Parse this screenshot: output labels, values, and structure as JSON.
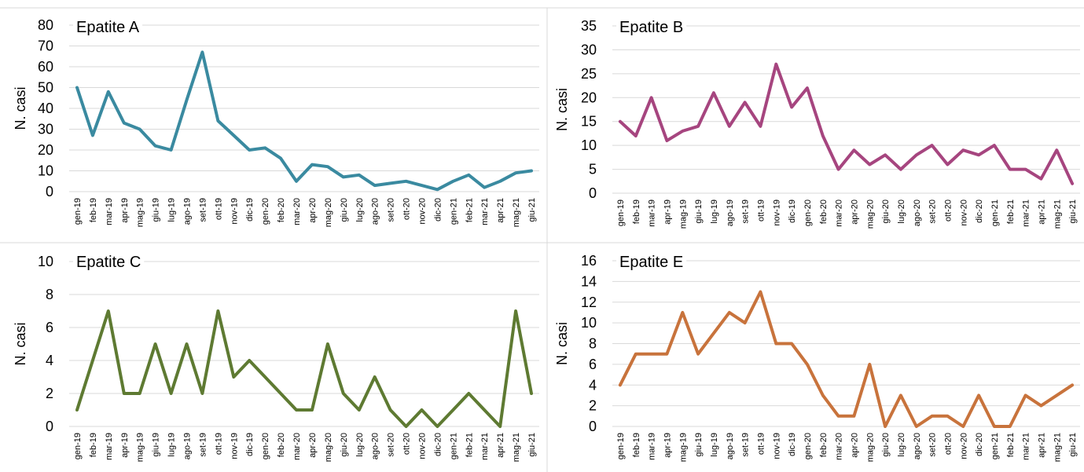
{
  "months": [
    "gen-19",
    "feb-19",
    "mar-19",
    "apr-19",
    "mag-19",
    "giu-19",
    "lug-19",
    "ago-19",
    "set-19",
    "ott-19",
    "nov-19",
    "dic-19",
    "gen-20",
    "feb-20",
    "mar-20",
    "apr-20",
    "mag-20",
    "giu-20",
    "lug-20",
    "ago-20",
    "set-20",
    "ott-20",
    "nov-20",
    "dic-20",
    "gen-21",
    "feb-21",
    "mar-21",
    "apr-21",
    "mag-21",
    "giu-21"
  ],
  "chart_data": [
    {
      "type": "line",
      "title": "Epatite A",
      "ylabel": "N. casi",
      "ylim": [
        0,
        80
      ],
      "yticks": [
        0,
        10,
        20,
        30,
        40,
        50,
        60,
        70,
        80
      ],
      "grid": true,
      "color": "#3a8aa0",
      "values": [
        50,
        27,
        48,
        33,
        30,
        22,
        20,
        44,
        67,
        34,
        27,
        20,
        21,
        16,
        5,
        13,
        12,
        7,
        8,
        3,
        4,
        5,
        3,
        1,
        5,
        8,
        2,
        5,
        9,
        10
      ]
    },
    {
      "type": "line",
      "title": "Epatite B",
      "ylabel": "N. casi",
      "ylim": [
        0,
        35
      ],
      "yticks": [
        0,
        5,
        10,
        15,
        20,
        25,
        30,
        35
      ],
      "grid": true,
      "color": "#a6457f",
      "values": [
        15,
        12,
        20,
        11,
        13,
        14,
        21,
        14,
        19,
        14,
        27,
        18,
        22,
        12,
        5,
        9,
        6,
        8,
        5,
        8,
        10,
        6,
        9,
        8,
        10,
        5,
        5,
        3,
        9,
        2
      ]
    },
    {
      "type": "line",
      "title": "Epatite C",
      "ylabel": "N. casi",
      "ylim": [
        0,
        10
      ],
      "yticks": [
        0,
        2,
        4,
        6,
        8,
        10
      ],
      "grid": true,
      "color": "#5e7a32",
      "values": [
        1,
        4,
        7,
        2,
        2,
        5,
        2,
        5,
        2,
        7,
        3,
        4,
        3,
        2,
        1,
        1,
        5,
        2,
        1,
        3,
        1,
        0,
        1,
        0,
        1,
        2,
        1,
        0,
        7,
        2
      ]
    },
    {
      "type": "line",
      "title": "Epatite E",
      "ylabel": "N. casi",
      "ylim": [
        0,
        16
      ],
      "yticks": [
        0,
        2,
        4,
        6,
        8,
        10,
        12,
        14,
        16
      ],
      "grid": true,
      "color": "#c8733c",
      "values": [
        4,
        7,
        7,
        7,
        11,
        7,
        9,
        11,
        10,
        13,
        8,
        8,
        6,
        3,
        1,
        1,
        6,
        0,
        3,
        0,
        1,
        1,
        0,
        3,
        0,
        0,
        3,
        2,
        3,
        4
      ]
    }
  ]
}
